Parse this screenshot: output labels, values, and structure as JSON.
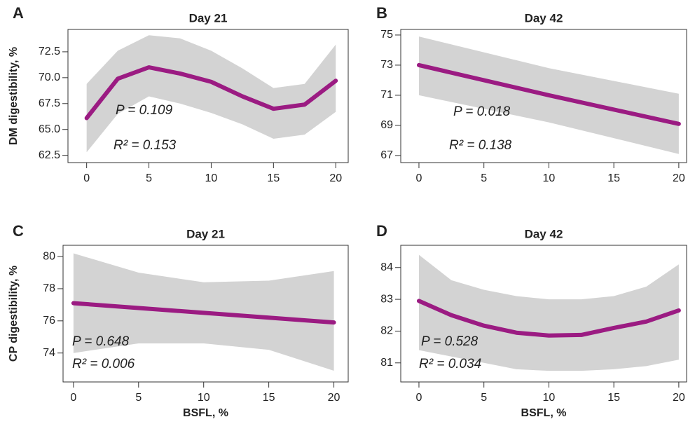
{
  "chart_data": [
    {
      "type": "line",
      "panel": "A",
      "title": "Day 21",
      "y_label": "DM digestibility, %",
      "x": [
        0,
        2.5,
        5,
        7.5,
        10,
        12.5,
        15,
        17.5,
        20
      ],
      "series": [
        {
          "color": "#9b1b82",
          "values": [
            66.1,
            69.9,
            71.0,
            70.4,
            69.6,
            68.2,
            67.0,
            67.4,
            69.7
          ]
        }
      ],
      "band": {
        "color": "#d3d3d3",
        "upper": [
          69.4,
          72.6,
          74.1,
          73.8,
          72.6,
          70.9,
          69.0,
          69.4,
          73.2
        ],
        "lower": [
          62.8,
          66.5,
          68.2,
          67.5,
          66.6,
          65.5,
          64.1,
          64.5,
          66.7
        ]
      },
      "annotations": [
        "P = 0.109",
        "R² = 0.153"
      ],
      "xlim": [
        -1.5,
        21
      ],
      "xticks": [
        0,
        5,
        10,
        15,
        20
      ],
      "ylim": [
        61.8,
        74.66
      ],
      "yticks": [
        {
          "value": 62.5,
          "label": "62.5"
        },
        {
          "value": 65,
          "label": "65.0"
        },
        {
          "value": 67.5,
          "label": "67.5"
        },
        {
          "value": 70,
          "label": "70.0"
        },
        {
          "value": 72.5,
          "label": "72.5"
        }
      ]
    },
    {
      "type": "line",
      "panel": "B",
      "title": "Day 42",
      "x": [
        0,
        10,
        20
      ],
      "series": [
        {
          "color": "#9b1b82",
          "values": [
            73.0,
            71.0,
            69.1
          ]
        }
      ],
      "band": {
        "color": "#d3d3d3",
        "upper": [
          74.9,
          72.8,
          71.1
        ],
        "lower": [
          71.0,
          69.2,
          67.1
        ]
      },
      "annotations": [
        "P = 0.018",
        "R² = 0.138"
      ],
      "xlim": [
        -1.4,
        20.6
      ],
      "xticks": [
        0,
        5,
        10,
        15,
        20
      ],
      "ylim": [
        66.53,
        75.37
      ],
      "yticks": [
        67,
        69,
        71,
        73,
        75
      ]
    },
    {
      "type": "line",
      "panel": "C",
      "title": "Day 21",
      "y_label": "CP digestibility, %",
      "x_label": "BSFL, %",
      "x": [
        0,
        5,
        10,
        15,
        20
      ],
      "series": [
        {
          "color": "#9b1b82",
          "values": [
            77.1,
            76.8,
            76.5,
            76.2,
            75.9
          ]
        }
      ],
      "band": {
        "color": "#d3d3d3",
        "upper": [
          80.2,
          79.0,
          78.4,
          78.5,
          79.1
        ],
        "lower": [
          74.0,
          74.6,
          74.6,
          74.2,
          72.9
        ]
      },
      "annotations": [
        "P = 0.648",
        "R² = 0.006"
      ],
      "xlim": [
        -0.8,
        21.1
      ],
      "xticks": [
        0,
        5,
        10,
        15,
        20
      ],
      "ylim": [
        72.2,
        80.7
      ],
      "yticks": [
        74,
        76,
        78,
        80
      ]
    },
    {
      "type": "line",
      "panel": "D",
      "title": "Day 42",
      "x_label": "BSFL, %",
      "x": [
        0,
        2.5,
        5,
        7.5,
        10,
        12.5,
        15,
        17.5,
        20
      ],
      "series": [
        {
          "color": "#9b1b82",
          "values": [
            82.95,
            82.5,
            82.17,
            81.95,
            81.86,
            81.88,
            82.1,
            82.3,
            82.65
          ]
        }
      ],
      "band": {
        "color": "#d3d3d3",
        "upper": [
          84.4,
          83.6,
          83.3,
          83.1,
          83.0,
          83.0,
          83.1,
          83.4,
          84.1
        ],
        "lower": [
          81.4,
          81.2,
          81.0,
          80.8,
          80.75,
          80.75,
          80.8,
          80.9,
          81.1
        ]
      },
      "annotations": [
        "P = 0.528",
        "R² = 0.034"
      ],
      "xlim": [
        -1.4,
        20.6
      ],
      "xticks": [
        0,
        5,
        10,
        15,
        20
      ],
      "ylim": [
        80.4,
        84.7
      ],
      "yticks": [
        81,
        82,
        83,
        84
      ]
    }
  ]
}
